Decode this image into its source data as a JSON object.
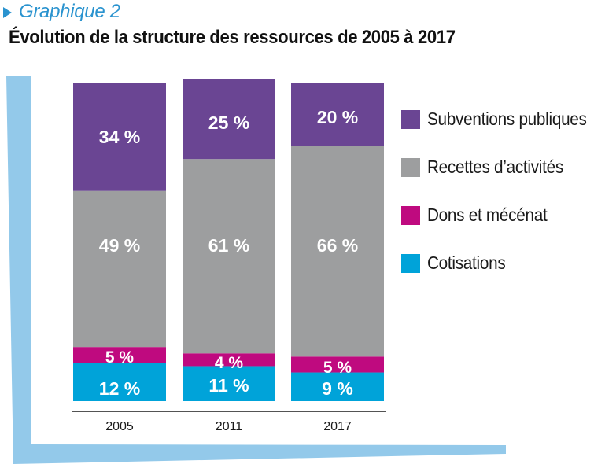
{
  "header": {
    "kicker": "Graphique 2",
    "title": "Évolution de la structure des ressources de 2005 à 2017"
  },
  "colors": {
    "accent": "#2a93cf",
    "frame": "#93c9ea",
    "axis": "#1a1a1a"
  },
  "chart_data": {
    "type": "bar",
    "stacked": true,
    "normalized_percent": true,
    "title": "Évolution de la structure des ressources de 2005 à 2017",
    "xlabel": "",
    "ylabel": "",
    "ylim": [
      0,
      100
    ],
    "grid": false,
    "legend_position": "right",
    "categories": [
      "2005",
      "2011",
      "2017"
    ],
    "series": [
      {
        "name": "Cotisations",
        "color": "#00a3d9",
        "values": [
          12,
          11,
          9
        ],
        "labels": [
          "12 %",
          "11 %",
          "9 %"
        ]
      },
      {
        "name": "Dons et mécénat",
        "color": "#bf0a7f",
        "values": [
          5,
          4,
          5
        ],
        "labels": [
          "5 %",
          "4 %",
          "5 %"
        ]
      },
      {
        "name": "Recettes d’activités",
        "color": "#9d9e9f",
        "values": [
          49,
          61,
          66
        ],
        "labels": [
          "49 %",
          "61 %",
          "66 %"
        ]
      },
      {
        "name": "Subventions publiques",
        "color": "#6a4593",
        "values": [
          34,
          25,
          20
        ],
        "labels": [
          "34 %",
          "25 %",
          "20 %"
        ]
      }
    ],
    "legend_order": [
      "Subventions publiques",
      "Recettes d’activités",
      "Dons et mécénat",
      "Cotisations"
    ]
  }
}
